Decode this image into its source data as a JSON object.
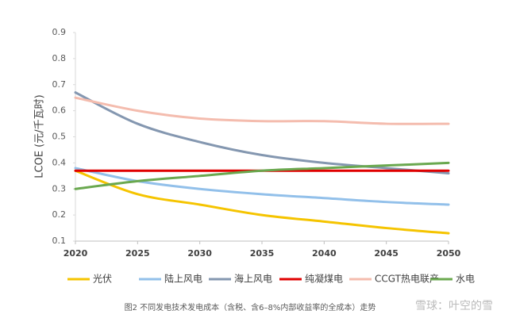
{
  "chart_data": {
    "type": "line",
    "y_label": "LCOE (元/千瓦时)",
    "caption": "图2 不同发电技术发电成本（含税、含6–8%内部收益率的全成本）走势",
    "watermark": "雪球：叶空的雪",
    "x": [
      2020,
      2025,
      2030,
      2035,
      2040,
      2045,
      2050
    ],
    "xlim": [
      2020,
      2050
    ],
    "xticks": [
      2020,
      2025,
      2030,
      2035,
      2040,
      2045,
      2050
    ],
    "ylim": [
      0.1,
      0.9
    ],
    "yticks": [
      0.1,
      0.2,
      0.3,
      0.4,
      0.5,
      0.6,
      0.7,
      0.8,
      0.9
    ],
    "grid": false,
    "legend": "bottom",
    "series": [
      {
        "name": "光伏",
        "color": "#f5c400",
        "values": [
          0.37,
          0.28,
          0.24,
          0.2,
          0.175,
          0.15,
          0.13
        ]
      },
      {
        "name": "陆上风电",
        "color": "#92c0ea",
        "values": [
          0.38,
          0.33,
          0.3,
          0.28,
          0.265,
          0.25,
          0.24
        ]
      },
      {
        "name": "海上风电",
        "color": "#8497b0",
        "values": [
          0.67,
          0.55,
          0.48,
          0.43,
          0.4,
          0.38,
          0.36
        ]
      },
      {
        "name": "纯凝煤电",
        "color": "#e00000",
        "values": [
          0.37,
          0.37,
          0.37,
          0.37,
          0.37,
          0.37,
          0.37
        ]
      },
      {
        "name": "CCGT热电联产",
        "color": "#f4bcae",
        "values": [
          0.65,
          0.6,
          0.57,
          0.56,
          0.56,
          0.55,
          0.55
        ]
      },
      {
        "name": "水电",
        "color": "#6aa84f",
        "values": [
          0.3,
          0.33,
          0.35,
          0.37,
          0.38,
          0.39,
          0.4
        ]
      }
    ]
  }
}
